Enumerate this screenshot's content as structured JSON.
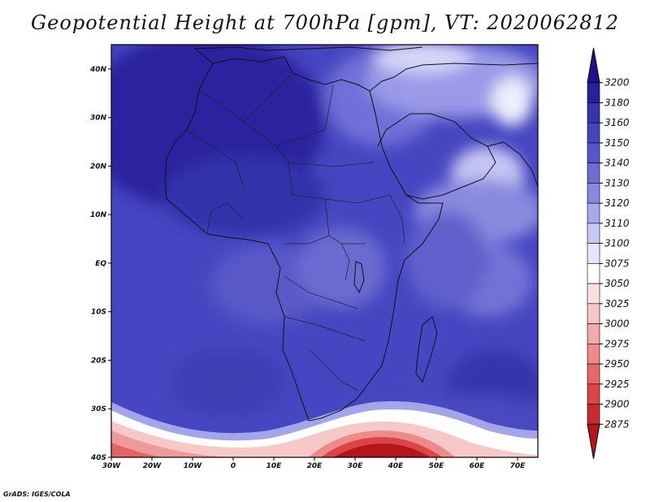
{
  "title": "Geopotential Height at 700hPa [gpm], VT: 2020062812",
  "credit": "GrADS: IGES/COLA",
  "map": {
    "lon_range": [
      -30,
      75
    ],
    "lat_range": [
      -40,
      45
    ],
    "lon_ticks": [
      "30W",
      "20W",
      "10W",
      "0",
      "10E",
      "20E",
      "30E",
      "40E",
      "50E",
      "60E",
      "70E"
    ],
    "lat_ticks": [
      "40S",
      "30S",
      "20S",
      "10S",
      "EQ",
      "10N",
      "20N",
      "30N",
      "40N"
    ]
  },
  "colorbar": {
    "levels": [
      "2875",
      "2900",
      "2925",
      "2950",
      "2975",
      "3000",
      "3025",
      "3050",
      "3075",
      "3100",
      "3110",
      "3120",
      "3130",
      "3140",
      "3150",
      "3160",
      "3180",
      "3200"
    ],
    "colors": [
      "#b4161c",
      "#c82a2f",
      "#dc4546",
      "#e86767",
      "#ee8a8a",
      "#f3aaaa",
      "#f7c6c6",
      "#fbe0e0",
      "#ffffff",
      "#e6e6fa",
      "#c8c8f5",
      "#a8a8ec",
      "#8888e0",
      "#6c6cd4",
      "#5656c8",
      "#4444bc",
      "#3434ad",
      "#28209a",
      "#1e1488"
    ]
  },
  "icons": {
    "credit": "grads-credit-label"
  }
}
